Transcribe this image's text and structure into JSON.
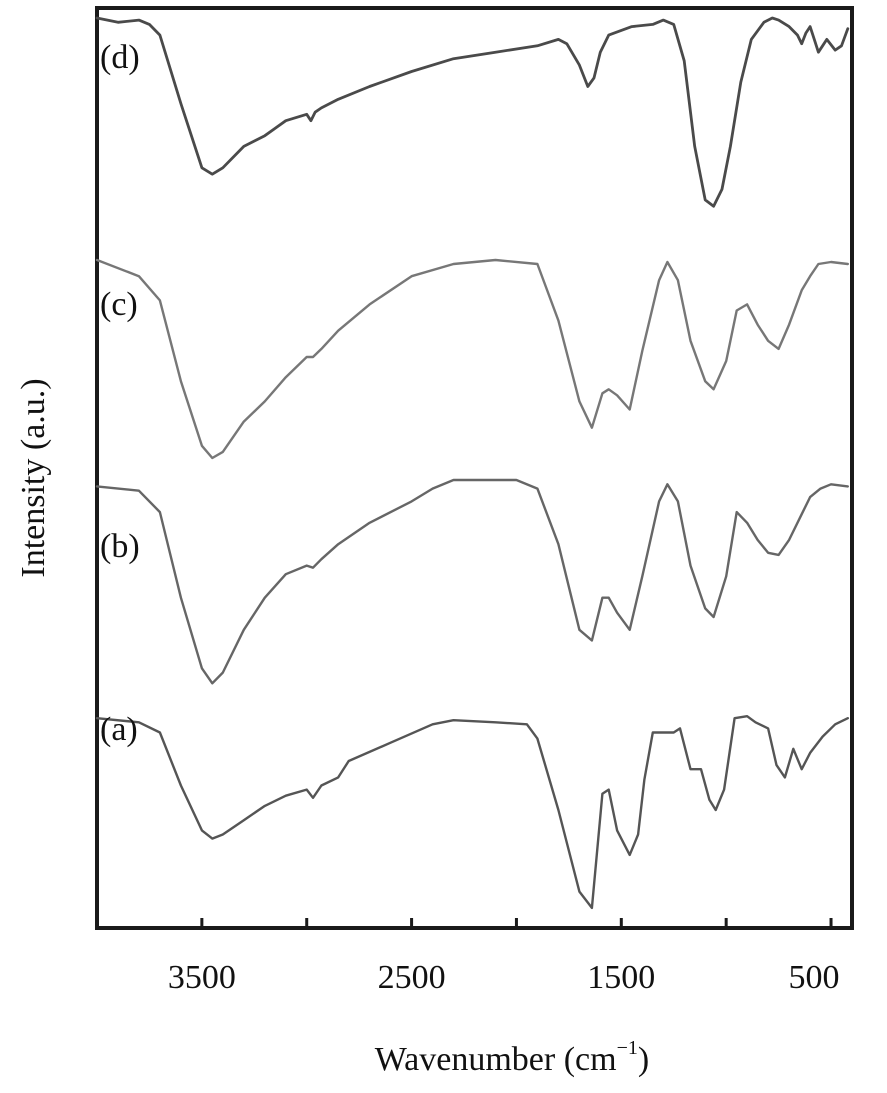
{
  "chart_data": {
    "type": "line",
    "xlabel": "Wavenumber (cm",
    "xlabel_sup": "−1",
    "xlabel_close": ")",
    "ylabel": "Intensity (a.u.)",
    "xlim": [
      4000,
      400
    ],
    "x_ticks": [
      3500,
      3000,
      2500,
      2000,
      1500,
      1000,
      500
    ],
    "x_tick_labels": [
      "3500",
      "2500",
      "1500",
      "500"
    ],
    "x_tick_label_values": [
      3500,
      2500,
      1500,
      500
    ],
    "y_ticks_shown": false,
    "grid": false,
    "legend": "none",
    "series": [
      {
        "name": "(a)",
        "color": "#555555",
        "stroke_width": 2.4,
        "points": [
          [
            4000,
            0.95
          ],
          [
            3800,
            0.93
          ],
          [
            3700,
            0.88
          ],
          [
            3600,
            0.62
          ],
          [
            3500,
            0.4
          ],
          [
            3450,
            0.36
          ],
          [
            3400,
            0.38
          ],
          [
            3300,
            0.45
          ],
          [
            3200,
            0.52
          ],
          [
            3100,
            0.57
          ],
          [
            3000,
            0.6
          ],
          [
            2970,
            0.56
          ],
          [
            2930,
            0.62
          ],
          [
            2850,
            0.66
          ],
          [
            2800,
            0.74
          ],
          [
            2600,
            0.83
          ],
          [
            2400,
            0.92
          ],
          [
            2300,
            0.94
          ],
          [
            2100,
            0.93
          ],
          [
            1950,
            0.92
          ],
          [
            1900,
            0.85
          ],
          [
            1800,
            0.5
          ],
          [
            1700,
            0.1
          ],
          [
            1640,
            0.02
          ],
          [
            1590,
            0.58
          ],
          [
            1560,
            0.6
          ],
          [
            1520,
            0.4
          ],
          [
            1460,
            0.28
          ],
          [
            1420,
            0.38
          ],
          [
            1390,
            0.65
          ],
          [
            1350,
            0.88
          ],
          [
            1250,
            0.88
          ],
          [
            1220,
            0.9
          ],
          [
            1170,
            0.7
          ],
          [
            1120,
            0.7
          ],
          [
            1080,
            0.55
          ],
          [
            1050,
            0.5
          ],
          [
            1010,
            0.6
          ],
          [
            960,
            0.95
          ],
          [
            900,
            0.96
          ],
          [
            860,
            0.93
          ],
          [
            800,
            0.9
          ],
          [
            760,
            0.72
          ],
          [
            720,
            0.66
          ],
          [
            680,
            0.8
          ],
          [
            640,
            0.7
          ],
          [
            600,
            0.78
          ],
          [
            540,
            0.86
          ],
          [
            480,
            0.92
          ],
          [
            420,
            0.95
          ]
        ]
      },
      {
        "name": "(b)",
        "color": "#666666",
        "stroke_width": 2.4,
        "points": [
          [
            4000,
            0.97
          ],
          [
            3800,
            0.95
          ],
          [
            3700,
            0.85
          ],
          [
            3600,
            0.45
          ],
          [
            3500,
            0.12
          ],
          [
            3450,
            0.05
          ],
          [
            3400,
            0.1
          ],
          [
            3300,
            0.3
          ],
          [
            3200,
            0.45
          ],
          [
            3100,
            0.56
          ],
          [
            3000,
            0.6
          ],
          [
            2970,
            0.59
          ],
          [
            2930,
            0.63
          ],
          [
            2850,
            0.7
          ],
          [
            2700,
            0.8
          ],
          [
            2500,
            0.9
          ],
          [
            2400,
            0.96
          ],
          [
            2300,
            1.0
          ],
          [
            2000,
            1.0
          ],
          [
            1900,
            0.96
          ],
          [
            1800,
            0.7
          ],
          [
            1700,
            0.3
          ],
          [
            1640,
            0.25
          ],
          [
            1590,
            0.45
          ],
          [
            1560,
            0.45
          ],
          [
            1520,
            0.38
          ],
          [
            1460,
            0.3
          ],
          [
            1400,
            0.55
          ],
          [
            1320,
            0.9
          ],
          [
            1280,
            0.98
          ],
          [
            1230,
            0.9
          ],
          [
            1170,
            0.6
          ],
          [
            1100,
            0.4
          ],
          [
            1060,
            0.36
          ],
          [
            1000,
            0.55
          ],
          [
            950,
            0.85
          ],
          [
            900,
            0.8
          ],
          [
            850,
            0.72
          ],
          [
            800,
            0.66
          ],
          [
            750,
            0.65
          ],
          [
            700,
            0.72
          ],
          [
            640,
            0.84
          ],
          [
            600,
            0.92
          ],
          [
            550,
            0.96
          ],
          [
            500,
            0.98
          ],
          [
            420,
            0.97
          ]
        ]
      },
      {
        "name": "(c)",
        "color": "#777777",
        "stroke_width": 2.4,
        "points": [
          [
            4000,
            1.0
          ],
          [
            3800,
            0.92
          ],
          [
            3700,
            0.8
          ],
          [
            3600,
            0.4
          ],
          [
            3500,
            0.08
          ],
          [
            3450,
            0.02
          ],
          [
            3400,
            0.05
          ],
          [
            3300,
            0.2
          ],
          [
            3200,
            0.3
          ],
          [
            3100,
            0.42
          ],
          [
            3000,
            0.52
          ],
          [
            2970,
            0.52
          ],
          [
            2930,
            0.56
          ],
          [
            2850,
            0.65
          ],
          [
            2700,
            0.78
          ],
          [
            2500,
            0.92
          ],
          [
            2300,
            0.98
          ],
          [
            2100,
            1.0
          ],
          [
            1900,
            0.98
          ],
          [
            1800,
            0.7
          ],
          [
            1700,
            0.3
          ],
          [
            1640,
            0.17
          ],
          [
            1590,
            0.34
          ],
          [
            1560,
            0.36
          ],
          [
            1520,
            0.33
          ],
          [
            1460,
            0.26
          ],
          [
            1400,
            0.55
          ],
          [
            1320,
            0.9
          ],
          [
            1280,
            0.99
          ],
          [
            1230,
            0.9
          ],
          [
            1170,
            0.6
          ],
          [
            1100,
            0.4
          ],
          [
            1060,
            0.36
          ],
          [
            1000,
            0.5
          ],
          [
            950,
            0.75
          ],
          [
            900,
            0.78
          ],
          [
            850,
            0.68
          ],
          [
            800,
            0.6
          ],
          [
            750,
            0.56
          ],
          [
            700,
            0.68
          ],
          [
            640,
            0.85
          ],
          [
            600,
            0.92
          ],
          [
            560,
            0.98
          ],
          [
            500,
            0.99
          ],
          [
            420,
            0.98
          ]
        ]
      },
      {
        "name": "(d)",
        "color": "#4a4a4a",
        "stroke_width": 2.8,
        "points": [
          [
            4000,
            1.0
          ],
          [
            3900,
            0.98
          ],
          [
            3800,
            0.99
          ],
          [
            3750,
            0.97
          ],
          [
            3700,
            0.92
          ],
          [
            3600,
            0.6
          ],
          [
            3500,
            0.3
          ],
          [
            3450,
            0.27
          ],
          [
            3400,
            0.3
          ],
          [
            3300,
            0.4
          ],
          [
            3200,
            0.45
          ],
          [
            3100,
            0.52
          ],
          [
            3000,
            0.55
          ],
          [
            2980,
            0.52
          ],
          [
            2960,
            0.56
          ],
          [
            2930,
            0.58
          ],
          [
            2850,
            0.62
          ],
          [
            2700,
            0.68
          ],
          [
            2500,
            0.75
          ],
          [
            2300,
            0.81
          ],
          [
            2100,
            0.84
          ],
          [
            1900,
            0.87
          ],
          [
            1800,
            0.9
          ],
          [
            1760,
            0.88
          ],
          [
            1700,
            0.78
          ],
          [
            1660,
            0.68
          ],
          [
            1630,
            0.72
          ],
          [
            1600,
            0.84
          ],
          [
            1560,
            0.92
          ],
          [
            1450,
            0.96
          ],
          [
            1350,
            0.97
          ],
          [
            1300,
            0.99
          ],
          [
            1250,
            0.97
          ],
          [
            1200,
            0.8
          ],
          [
            1150,
            0.4
          ],
          [
            1100,
            0.15
          ],
          [
            1060,
            0.12
          ],
          [
            1020,
            0.2
          ],
          [
            980,
            0.4
          ],
          [
            930,
            0.7
          ],
          [
            880,
            0.9
          ],
          [
            820,
            0.98
          ],
          [
            780,
            1.0
          ],
          [
            750,
            0.99
          ],
          [
            700,
            0.96
          ],
          [
            660,
            0.92
          ],
          [
            640,
            0.88
          ],
          [
            620,
            0.93
          ],
          [
            600,
            0.96
          ],
          [
            580,
            0.9
          ],
          [
            560,
            0.84
          ],
          [
            540,
            0.87
          ],
          [
            520,
            0.9
          ],
          [
            480,
            0.85
          ],
          [
            450,
            0.87
          ],
          [
            420,
            0.95
          ]
        ]
      }
    ]
  }
}
